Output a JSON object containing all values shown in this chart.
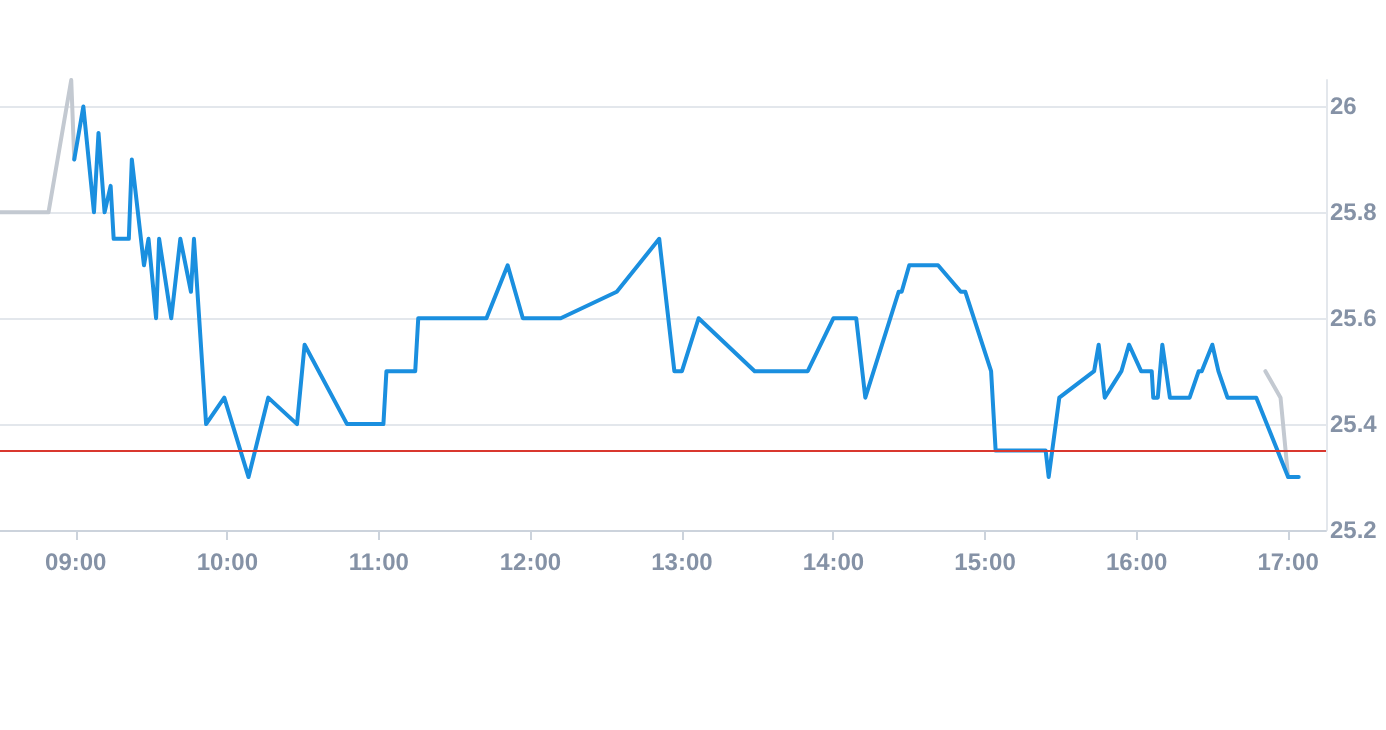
{
  "chart_data": {
    "type": "line",
    "series": [
      {
        "color": "#c3c9d1",
        "x": [
          8.5,
          8.82,
          8.97,
          8.99
        ],
        "values": [
          25.8,
          25.8,
          26.05,
          25.9
        ]
      },
      {
        "color": "#1a8fdf",
        "x": [
          8.99,
          9.05,
          9.12,
          9.15,
          9.19,
          9.23,
          9.25,
          9.35,
          9.37,
          9.45,
          9.48,
          9.53,
          9.55,
          9.63,
          9.69,
          9.76,
          9.78,
          9.86,
          9.98,
          10.14,
          10.27,
          10.46,
          10.51,
          10.79,
          11.03,
          11.05,
          11.24,
          11.26,
          11.71,
          11.85,
          11.95,
          12.2,
          12.57,
          12.85,
          12.95,
          13.0,
          13.11,
          13.48,
          13.83,
          14.0,
          14.15,
          14.21,
          14.43,
          14.45,
          14.5,
          14.69,
          14.84,
          14.87,
          15.04,
          15.07,
          15.4,
          15.42,
          15.49,
          15.72,
          15.75,
          15.79,
          15.9,
          15.95,
          16.03,
          16.1,
          16.11,
          16.14,
          16.17,
          16.22,
          16.35,
          16.41,
          16.43,
          16.5,
          16.54,
          16.6,
          16.79,
          17.0,
          17.07
        ],
        "values": [
          25.9,
          26.0,
          25.8,
          25.95,
          25.8,
          25.85,
          25.75,
          25.75,
          25.9,
          25.7,
          25.75,
          25.6,
          25.75,
          25.6,
          25.75,
          25.65,
          25.75,
          25.4,
          25.45,
          25.3,
          25.45,
          25.4,
          25.55,
          25.4,
          25.4,
          25.5,
          25.5,
          25.6,
          25.6,
          25.7,
          25.6,
          25.6,
          25.65,
          25.75,
          25.5,
          25.5,
          25.6,
          25.5,
          25.5,
          25.6,
          25.6,
          25.45,
          25.65,
          25.65,
          25.7,
          25.7,
          25.65,
          25.65,
          25.5,
          25.35,
          25.35,
          25.3,
          25.45,
          25.5,
          25.55,
          25.45,
          25.5,
          25.55,
          25.5,
          25.5,
          25.45,
          25.45,
          25.55,
          25.45,
          25.45,
          25.5,
          25.5,
          25.55,
          25.5,
          25.45,
          25.45,
          25.3,
          25.3
        ]
      },
      {
        "color": "#c3c9d1",
        "x": [
          16.85,
          16.95,
          17.0
        ],
        "values": [
          25.5,
          25.45,
          25.3
        ]
      }
    ],
    "xlim": [
      8.5,
      17.25
    ],
    "xticks": [
      {
        "value": 9,
        "label": "09:00"
      },
      {
        "value": 10,
        "label": "10:00"
      },
      {
        "value": 11,
        "label": "11:00"
      },
      {
        "value": 12,
        "label": "12:00"
      },
      {
        "value": 13,
        "label": "13:00"
      },
      {
        "value": 14,
        "label": "14:00"
      },
      {
        "value": 15,
        "label": "15:00"
      },
      {
        "value": 16,
        "label": "16:00"
      },
      {
        "value": 17,
        "label": "17:00"
      }
    ],
    "ylim": [
      25.2,
      26.05
    ],
    "yticks": [
      25.2,
      25.4,
      25.6,
      25.8,
      26
    ],
    "ref_lines": [
      {
        "axis": "y",
        "value": 25.35,
        "color": "#d9382f"
      }
    ],
    "grid": "y",
    "marker": "none",
    "line_style": "solid"
  }
}
